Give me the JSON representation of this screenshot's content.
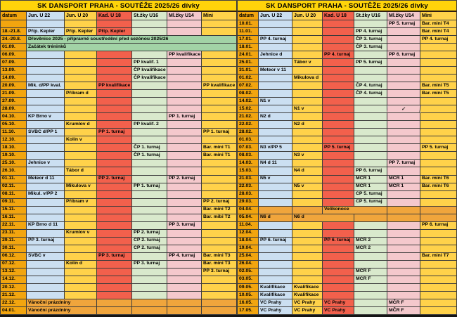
{
  "title": "SK DANSPORT PRAHA - SOUTĚŽE 2025/26 dívky",
  "columns": [
    "datum",
    "Jun. U 22",
    "Jun. U 20",
    "Kad. U 18",
    "St.žky U16",
    "Ml.žky U14",
    "Mini"
  ],
  "colors": {
    "title_bg": "#FFD40A",
    "datum_col": "#F2A50F",
    "jun_u22_col": "#CBDFF1",
    "jun_u20_col": "#FFD24A",
    "kad_u18_col": "#F2604C",
    "stzky_u16_col": "#D9E9CC",
    "mlzky_u14_col": "#F4C8CC",
    "mini_col": "#FFD24A",
    "training_span_green": "#A2D3A6",
    "holiday_row_orange": "#F0A53C",
    "grid_line": "#3C3C3C"
  },
  "panels": {
    "left": {
      "rows": [
        {
          "date": "",
          "cells": [
            "",
            "",
            "",
            "",
            "",
            ""
          ]
        },
        {
          "date": "18.-21.8.",
          "cells": [
            "Příp. Kepler",
            "Příp. Kepler",
            "Příp. Kepler",
            "",
            "",
            ""
          ]
        },
        {
          "date": "24.-29.8.",
          "span": "Dřevěnice 2025 - přípravné soustředění před sezónou 2025/26",
          "style": "green"
        },
        {
          "date": "01.09.",
          "span": "Začátek tréninků",
          "style": "green"
        },
        {
          "date": "06.09.",
          "cells": [
            "",
            "",
            "",
            "",
            "PP kvalifikace",
            ""
          ]
        },
        {
          "date": "07.09.",
          "cells": [
            "",
            "",
            "",
            "PP kvalif. 1",
            "",
            ""
          ]
        },
        {
          "date": "13.09.",
          "cells": [
            "",
            "",
            "",
            "ČP kvalifikace",
            "",
            ""
          ]
        },
        {
          "date": "14.09.",
          "cells": [
            "",
            "",
            "",
            "ČP kvalifikace",
            "",
            ""
          ]
        },
        {
          "date": "20.09.",
          "cells": [
            "Mik. d/PP kval.",
            "",
            "PP kvalifikace",
            "",
            "",
            "PP kvalifikace"
          ]
        },
        {
          "date": "21.09.",
          "cells": [
            "",
            "Příbram d",
            "",
            "",
            "",
            ""
          ]
        },
        {
          "date": "27.09.",
          "cells": [
            "",
            "",
            "",
            "",
            "",
            ""
          ]
        },
        {
          "date": "28.09.",
          "cells": [
            "",
            "",
            "",
            "",
            "",
            ""
          ]
        },
        {
          "date": "04.10.",
          "cells": [
            "KP Brno v",
            "",
            "",
            "",
            "PP 1. turnaj",
            ""
          ]
        },
        {
          "date": "05.10.",
          "cells": [
            "",
            "Krumlov d",
            "",
            "PP kvalif. 2",
            "",
            ""
          ]
        },
        {
          "date": "11.10.",
          "cells": [
            "SVBC d/PP 1",
            "",
            "PP 1. turnaj",
            "",
            "",
            "PP 1. turnaj"
          ]
        },
        {
          "date": "12.10.",
          "cells": [
            "",
            "Kolín v",
            "",
            "",
            "",
            ""
          ]
        },
        {
          "date": "18.10.",
          "cells": [
            "",
            "",
            "",
            "ČP 1. turnaj",
            "",
            "Bar. mini T1"
          ]
        },
        {
          "date": "19.10.",
          "cells": [
            "",
            "",
            "",
            "ČP 1. turnaj",
            "",
            "Bar. mini T1"
          ]
        },
        {
          "date": "25.10.",
          "cells": [
            "Jehnice v",
            "",
            "",
            "",
            "",
            ""
          ]
        },
        {
          "date": "26.10.",
          "cells": [
            "",
            "Tábor d",
            "",
            "",
            "",
            ""
          ]
        },
        {
          "date": "01.11.",
          "cells": [
            "Meteor d 11",
            "",
            "PP 2. turnaj",
            "",
            "PP 2. turnaj",
            ""
          ]
        },
        {
          "date": "02.11.",
          "cells": [
            "",
            "Mikulova v",
            "",
            "PP 1. turnaj",
            "",
            ""
          ]
        },
        {
          "date": "08.11.",
          "cells": [
            "Mikul. v/PP 2",
            "",
            "",
            "",
            "",
            ""
          ]
        },
        {
          "date": "09.11.",
          "cells": [
            "",
            "Příbram v",
            "",
            "",
            "",
            "PP 2. turnaj"
          ]
        },
        {
          "date": "15.11.",
          "cells": [
            "",
            "",
            "",
            "",
            "",
            "Bar. mini T2"
          ]
        },
        {
          "date": "16.11.",
          "cells": [
            "",
            "",
            "",
            "",
            "",
            "Bar. mibi T2"
          ]
        },
        {
          "date": "22.11.",
          "cells": [
            "KP Brno d 11",
            "",
            "",
            "",
            "PP 3. turnaj",
            ""
          ]
        },
        {
          "date": "23.11.",
          "cells": [
            "",
            "Krumlov v",
            "",
            "PP 2. turnaj",
            "",
            ""
          ]
        },
        {
          "date": "29.11.",
          "cells": [
            "PP 3. turnaj",
            "",
            "",
            "ČP 2. turnaj",
            "",
            ""
          ]
        },
        {
          "date": "30.11.",
          "cells": [
            "",
            "",
            "",
            "ČP 2. turnaj",
            "",
            ""
          ]
        },
        {
          "date": "06.12.",
          "cells": [
            "SVBC v",
            "",
            "PP 3. turnaj",
            "",
            "PP 4. turnaj",
            "Bar. mini T3"
          ]
        },
        {
          "date": "07.12.",
          "cells": [
            "",
            "Kolín d",
            "",
            "PP 3. turnaj",
            "",
            "Bar. mini T3"
          ]
        },
        {
          "date": "13.12.",
          "cells": [
            "",
            "",
            "",
            "",
            "",
            "PP 3. turnaj"
          ]
        },
        {
          "date": "14.12.",
          "cells": [
            "",
            "",
            "",
            "",
            "",
            ""
          ]
        },
        {
          "date": "20.12.",
          "cells": [
            "",
            "",
            "",
            "",
            "",
            ""
          ]
        },
        {
          "date": "21.12.",
          "cells": [
            "",
            "",
            "",
            "",
            "",
            ""
          ]
        },
        {
          "date": "22.12.",
          "cells": [
            "Vánoční prázdniny",
            "",
            "",
            "",
            "",
            ""
          ],
          "style": "orange"
        },
        {
          "date": "04.01.",
          "cells": [
            "Vánoční prázdniny",
            "",
            "",
            "",
            "",
            ""
          ],
          "style": "orange"
        }
      ]
    },
    "right": {
      "rows": [
        {
          "date": "10.01.",
          "cells": [
            "",
            "",
            "",
            "",
            "PP 5. turnaj",
            "Bar. mini T4"
          ]
        },
        {
          "date": "11.01.",
          "cells": [
            "",
            "",
            "",
            "PP 4. turnaj",
            "",
            "Bar. mini T4"
          ]
        },
        {
          "date": "17.01.",
          "cells": [
            "PP 4. turnaj",
            "",
            "",
            "ČP 3. turnaj",
            "",
            "PP 4. turnaj"
          ]
        },
        {
          "date": "18.01.",
          "cells": [
            "",
            "",
            "",
            "ČP 3. turnaj",
            "",
            ""
          ]
        },
        {
          "date": "24.01.",
          "cells": [
            "Jehnice d",
            "",
            "PP 4. turnaj",
            "",
            "PP 6. turnaj",
            ""
          ]
        },
        {
          "date": "25.01.",
          "cells": [
            "",
            "Tábor v",
            "",
            "PP 5. turnaj",
            "",
            ""
          ]
        },
        {
          "date": "31.01.",
          "cells": [
            "Meteor v 11",
            "",
            "",
            "",
            "",
            ""
          ]
        },
        {
          "date": "01.02.",
          "cells": [
            "",
            "Mikulova d",
            "",
            "",
            "",
            ""
          ]
        },
        {
          "date": "07.02.",
          "cells": [
            "",
            "",
            "",
            "ČP 4. turnaj",
            "",
            "Bar. mini T5"
          ]
        },
        {
          "date": "08.02.",
          "cells": [
            "",
            "",
            "",
            "ČP 4. turnaj",
            "",
            "Bar. mini T5"
          ]
        },
        {
          "date": "14.02.",
          "cells": [
            "N1 v",
            "",
            "",
            "",
            "",
            ""
          ]
        },
        {
          "date": "15.02.",
          "cells": [
            "",
            "N1 v",
            "",
            "",
            "✓",
            ""
          ]
        },
        {
          "date": "21.02.",
          "cells": [
            "N2 d",
            "",
            "",
            "",
            "",
            ""
          ]
        },
        {
          "date": "22.02.",
          "cells": [
            "",
            "N2 d",
            "",
            "",
            "",
            ""
          ]
        },
        {
          "date": "28.02.",
          "cells": [
            "",
            "",
            "",
            "",
            "",
            ""
          ]
        },
        {
          "date": "01.03.",
          "cells": [
            "",
            "",
            "",
            "",
            "",
            ""
          ]
        },
        {
          "date": "07.03.",
          "cells": [
            "N3 v/PP 5",
            "",
            "PP 5. turnaj",
            "",
            "",
            "PP 5. turnaj"
          ]
        },
        {
          "date": "08.03.",
          "cells": [
            "",
            "N3 v",
            "",
            "",
            "",
            ""
          ]
        },
        {
          "date": "14.03.",
          "cells": [
            "N4 d 11",
            "",
            "",
            "",
            "PP 7. turnaj",
            ""
          ]
        },
        {
          "date": "15.03.",
          "cells": [
            "",
            "N4 d",
            "",
            "PP 6. turnaj",
            "",
            ""
          ]
        },
        {
          "date": "21.03.",
          "cells": [
            "N5 v",
            "",
            "",
            "MČR 1",
            "MČR 1",
            "Bar. mini T6"
          ]
        },
        {
          "date": "22.03.",
          "cells": [
            "",
            "N5 v",
            "",
            "MČR 1",
            "MČR 1",
            "Bar. mini T6"
          ]
        },
        {
          "date": "28.03.",
          "cells": [
            "",
            "",
            "",
            "ČP 5. turnaj",
            "",
            ""
          ]
        },
        {
          "date": "29.03.",
          "cells": [
            "",
            "",
            "",
            "ČP 5. turnaj",
            "",
            ""
          ]
        },
        {
          "date": "04.04.",
          "cells": [
            "",
            "",
            "Velikonoce",
            "",
            "",
            ""
          ],
          "style": "orange"
        },
        {
          "date": "05.04.",
          "cells": [
            "N6 d",
            "N6 d",
            "",
            "",
            "",
            ""
          ],
          "style": "orange"
        },
        {
          "date": "11.04.",
          "cells": [
            "",
            "",
            "",
            "",
            "",
            "PP 6. turnaj"
          ]
        },
        {
          "date": "12.04.",
          "cells": [
            "",
            "",
            "",
            "",
            "",
            ""
          ]
        },
        {
          "date": "18.04.",
          "cells": [
            "PP 6. turnaj",
            "",
            "PP 6. turnaj",
            "MČR 2",
            "",
            ""
          ]
        },
        {
          "date": "19.04.",
          "cells": [
            "",
            "",
            "",
            "MČR 2",
            "",
            ""
          ]
        },
        {
          "date": "25.04.",
          "cells": [
            "",
            "",
            "",
            "",
            "",
            "Bar. mini T7"
          ]
        },
        {
          "date": "26.04.",
          "cells": [
            "",
            "",
            "",
            "",
            "",
            ""
          ]
        },
        {
          "date": "02.05.",
          "cells": [
            "",
            "",
            "",
            "MČR F",
            "",
            ""
          ]
        },
        {
          "date": "03.05.",
          "cells": [
            "",
            "",
            "",
            "MČR F",
            "",
            ""
          ]
        },
        {
          "date": "09.05.",
          "cells": [
            "Kvalifikace",
            "Kvalifikace",
            "",
            "",
            "",
            ""
          ]
        },
        {
          "date": "10.05.",
          "cells": [
            "Kvalifikace",
            "Kvalifikace",
            "",
            "",
            "",
            ""
          ]
        },
        {
          "date": "16.05.",
          "cells": [
            "VC Prahy",
            "VC Prahy",
            "VC Prahy",
            "",
            "MČR F",
            ""
          ]
        },
        {
          "date": "17.05.",
          "cells": [
            "VC Prahy",
            "VC Prahy",
            "VC Prahy",
            "",
            "MČR F",
            ""
          ]
        }
      ]
    }
  }
}
